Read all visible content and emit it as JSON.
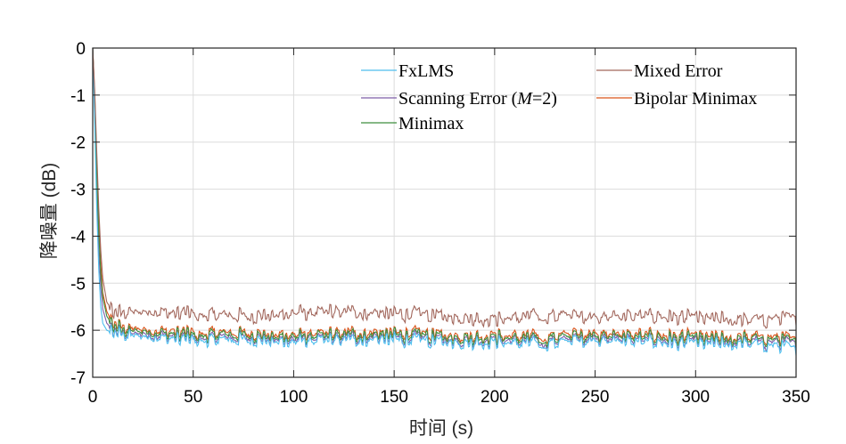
{
  "chart_data": {
    "type": "line",
    "title": "",
    "xlabel": "时间 (s)",
    "ylabel": "降噪量 (dB)",
    "xlim": [
      0,
      350
    ],
    "ylim": [
      -7,
      0
    ],
    "xticks": [
      0,
      50,
      100,
      150,
      200,
      250,
      300,
      350
    ],
    "yticks": [
      0,
      -1,
      -2,
      -3,
      -4,
      -5,
      -6,
      -7
    ],
    "grid": true,
    "legend_position": "top-right",
    "series": [
      {
        "name": "FxLMS",
        "color": "#4dbeee",
        "x": [
          0,
          1,
          2,
          3,
          4,
          5,
          7,
          10,
          15,
          20,
          30,
          50,
          75,
          100,
          125,
          150,
          175,
          200,
          225,
          250,
          275,
          300,
          325,
          350
        ],
        "y": [
          0,
          -1.6,
          -3.4,
          -4.7,
          -5.5,
          -5.85,
          -6.0,
          -6.05,
          -6.1,
          -6.15,
          -6.15,
          -6.2,
          -6.2,
          -6.25,
          -6.2,
          -6.2,
          -6.25,
          -6.25,
          -6.3,
          -6.2,
          -6.25,
          -6.3,
          -6.3,
          -6.4
        ]
      },
      {
        "name": "Mixed Error",
        "color": "#a2675c",
        "x": [
          0,
          1,
          2,
          3,
          4,
          5,
          7,
          10,
          15,
          20,
          30,
          50,
          75,
          100,
          125,
          150,
          175,
          200,
          225,
          250,
          275,
          300,
          325,
          350
        ],
        "y": [
          0,
          -0.9,
          -2.2,
          -3.4,
          -4.3,
          -4.9,
          -5.4,
          -5.6,
          -5.65,
          -5.65,
          -5.6,
          -5.65,
          -5.7,
          -5.65,
          -5.6,
          -5.65,
          -5.7,
          -5.75,
          -5.7,
          -5.7,
          -5.7,
          -5.75,
          -5.8,
          -5.75
        ]
      },
      {
        "name": "Scanning Error (M=2)",
        "color": "#7e5ea8",
        "x": [
          0,
          1,
          2,
          3,
          4,
          5,
          7,
          10,
          15,
          20,
          30,
          50,
          75,
          100,
          125,
          150,
          175,
          200,
          225,
          250,
          275,
          300,
          325,
          350
        ],
        "y": [
          0,
          -1.3,
          -3.0,
          -4.3,
          -5.1,
          -5.55,
          -5.85,
          -6.0,
          -6.05,
          -6.1,
          -6.1,
          -6.15,
          -6.15,
          -6.2,
          -6.15,
          -6.15,
          -6.2,
          -6.2,
          -6.25,
          -6.15,
          -6.2,
          -6.25,
          -6.25,
          -6.3
        ]
      },
      {
        "name": "Bipolar Minimax",
        "color": "#d95319",
        "x": [
          0,
          1,
          2,
          3,
          4,
          5,
          7,
          10,
          15,
          20,
          30,
          50,
          75,
          100,
          125,
          150,
          175,
          200,
          225,
          250,
          275,
          300,
          325,
          350
        ],
        "y": [
          0,
          -1.0,
          -2.5,
          -3.7,
          -4.6,
          -5.2,
          -5.6,
          -5.85,
          -5.95,
          -6.0,
          -6.0,
          -6.05,
          -6.05,
          -6.1,
          -6.05,
          -6.05,
          -6.1,
          -6.1,
          -6.15,
          -6.05,
          -6.1,
          -6.15,
          -6.15,
          -6.2
        ]
      },
      {
        "name": "Minimax",
        "color": "#3e8e3e",
        "x": [
          0,
          1,
          2,
          3,
          4,
          5,
          7,
          10,
          15,
          20,
          30,
          50,
          75,
          100,
          125,
          150,
          175,
          200,
          225,
          250,
          275,
          300,
          325,
          350
        ],
        "y": [
          0,
          -1.1,
          -2.7,
          -3.9,
          -4.8,
          -5.3,
          -5.7,
          -5.9,
          -6.0,
          -6.05,
          -6.05,
          -6.1,
          -6.1,
          -6.15,
          -6.1,
          -6.1,
          -6.15,
          -6.15,
          -6.2,
          -6.1,
          -6.15,
          -6.2,
          -6.2,
          -6.25
        ]
      }
    ]
  },
  "legend": {
    "fxlms": "FxLMS",
    "scanning_prefix": "Scanning Error (",
    "scanning_var": "M",
    "scanning_suffix": "=2)",
    "minimax": "Minimax",
    "mixed": "Mixed Error",
    "bipolar": "Bipolar Minimax"
  }
}
